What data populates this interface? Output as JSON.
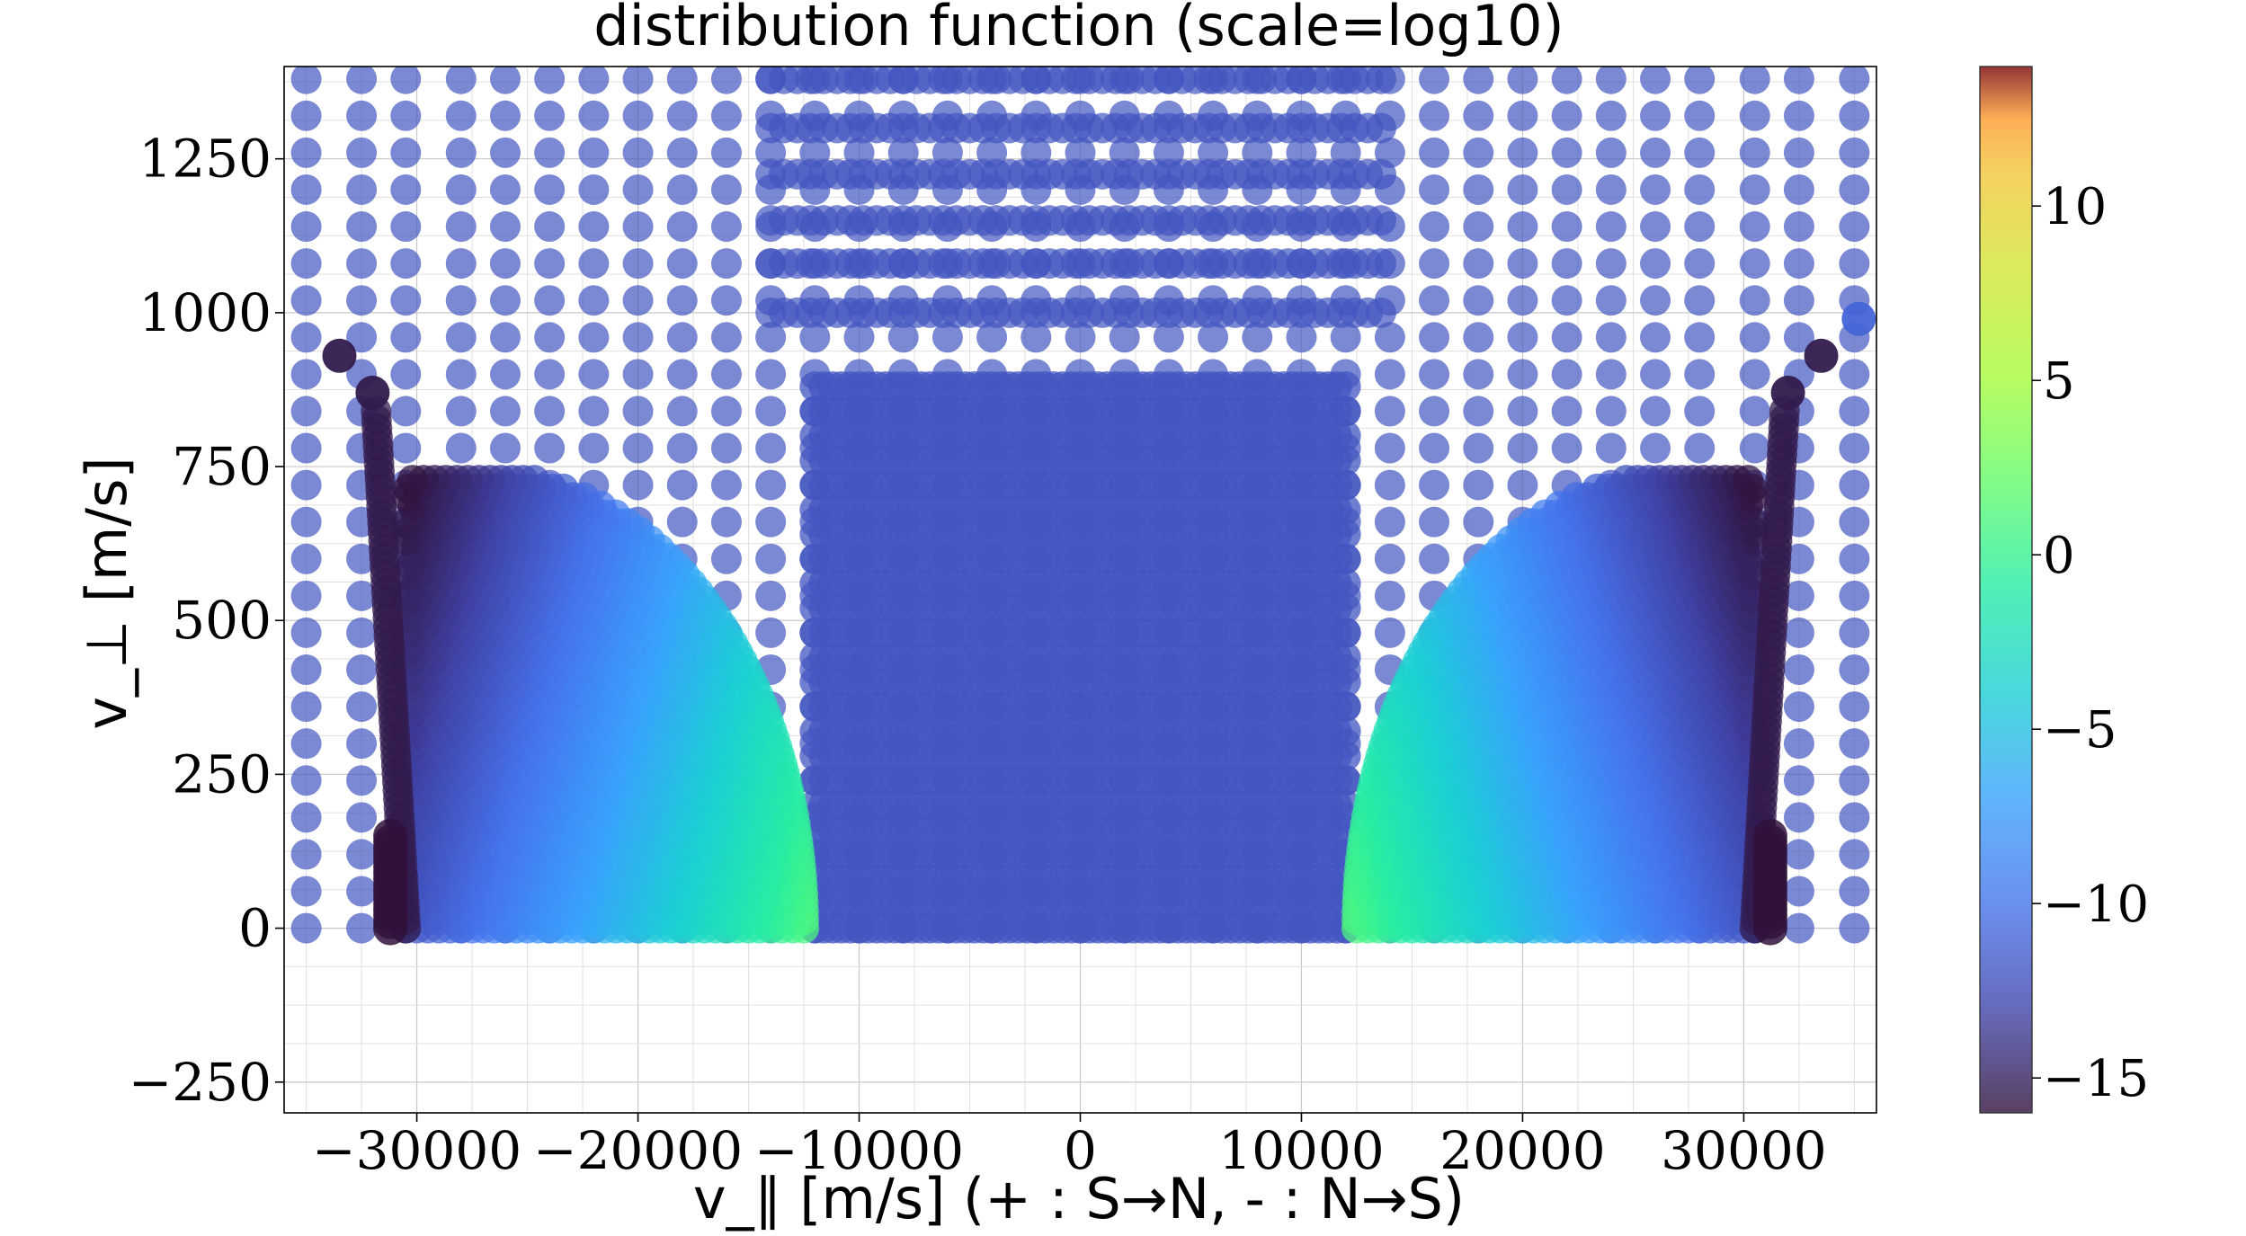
{
  "chart_data": {
    "type": "scatter",
    "title": "distribution function (scale=log10)",
    "xlabel": "v_∥ [m/s] (+ : S→N, - : N→S)",
    "ylabel": "v_⊥ [m/s]",
    "xlim": [
      -36000,
      36000
    ],
    "ylim": [
      -300,
      1400
    ],
    "x_ticks": [
      -30000,
      -20000,
      -10000,
      0,
      10000,
      20000,
      30000
    ],
    "x_tick_labels": [
      "−30000",
      "−20000",
      "−10000",
      "0",
      "10000",
      "20000",
      "30000"
    ],
    "y_ticks": [
      -250,
      0,
      250,
      500,
      750,
      1000,
      1250
    ],
    "y_tick_labels": [
      "−250",
      "0",
      "250",
      "500",
      "750",
      "1000",
      "1250"
    ],
    "grid": true,
    "colorbar": {
      "colormap": "turbo",
      "range": [
        -16,
        14
      ],
      "ticks": [
        -15,
        -10,
        -5,
        0,
        5,
        10
      ],
      "tick_labels": [
        "−15",
        "−10",
        "−5",
        "0",
        "5",
        "10"
      ]
    },
    "background_level": -12,
    "grid_rows_v_perp": [
      0,
      1000,
      1080,
      1150,
      1225,
      1300,
      1380
    ],
    "grid_cols_v_par": [
      -35000,
      -32500,
      -30500,
      -28000,
      -26000,
      -24000,
      -22000,
      -20000,
      -18000,
      -16000,
      -14000,
      -12000,
      -10000,
      -8000,
      -6000,
      -4000,
      -2000,
      0,
      2000,
      4000,
      6000,
      8000,
      10000,
      12000,
      14000,
      16000,
      18000,
      20000,
      22000,
      24000,
      26000,
      28000,
      30500,
      32500,
      35000
    ],
    "populated_lobes": [
      {
        "side": "negative",
        "v_par_min": -30500,
        "v_par_max": -12500,
        "v_perp_max": 730,
        "value_at_inner_edge": 1,
        "value_at_outer_edge": -12
      },
      {
        "side": "positive",
        "v_par_min": 12500,
        "v_par_max": 30500,
        "v_perp_max": 730,
        "value_at_inner_edge": 1,
        "value_at_outer_edge": -12
      }
    ],
    "dark_edge_points": [
      {
        "v_par": -33500,
        "v_perp": 930,
        "value": -15.5
      },
      {
        "v_par": -32000,
        "v_perp": 870,
        "value": -15.5
      },
      {
        "v_par": 33500,
        "v_perp": 930,
        "value": -15.5
      },
      {
        "v_par": 32000,
        "v_perp": 870,
        "value": -15.5
      },
      {
        "v_par": 35200,
        "v_perp": 990,
        "value": -11
      }
    ]
  }
}
